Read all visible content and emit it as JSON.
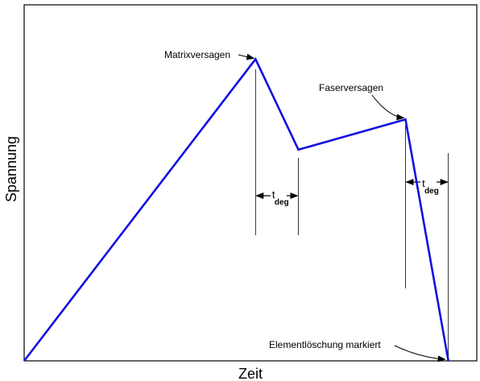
{
  "chart_data": {
    "type": "line",
    "title": "",
    "xlabel": "Zeit",
    "ylabel": "Spannung",
    "grid": false,
    "series_color": "#1010e0",
    "x": [
      0,
      5.4,
      6.4,
      8.9,
      9.9
    ],
    "y": [
      0,
      10,
      7,
      8,
      0
    ],
    "xlim": [
      0,
      10
    ],
    "ylim": [
      0,
      11.8
    ],
    "annotations": [
      {
        "id": "matrix",
        "text": "Matrixversagen",
        "x": 5.4,
        "y": 10
      },
      {
        "id": "faser",
        "text": "Faserversagen",
        "x": 8.9,
        "y": 8
      },
      {
        "id": "element",
        "text": "Elementlöschung markiert",
        "x": 9.9,
        "y": 0
      }
    ],
    "intervals": [
      {
        "label": "t",
        "subscript": "deg",
        "x_start": 5.4,
        "x_end": 6.4
      },
      {
        "label": "t",
        "subscript": "deg",
        "x_start": 8.9,
        "x_end": 9.9
      }
    ]
  }
}
